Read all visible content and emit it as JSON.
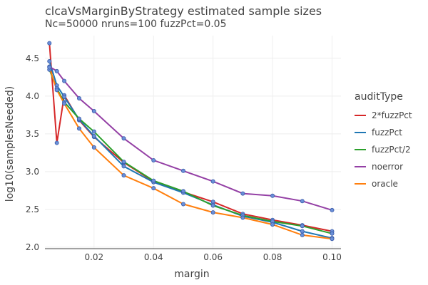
{
  "chart_data": {
    "type": "line",
    "title": "clcaVsMarginByStrategy estimated sample sizes",
    "subtitle": "Nc=50000 nruns=100 fuzzPct=0.05",
    "xlabel": "margin",
    "ylabel": "log10(samplesNeeded)",
    "xlim": [
      0.0035,
      0.103
    ],
    "ylim": [
      1.98,
      4.8
    ],
    "xticks": [
      0.02,
      0.04,
      0.06,
      0.08,
      0.1
    ],
    "xtick_labels": [
      "0.02",
      "0.04",
      "0.06",
      "0.08",
      "0.10"
    ],
    "yticks": [
      2.0,
      2.5,
      3.0,
      3.5,
      4.0,
      4.5
    ],
    "ytick_labels": [
      "2.0",
      "2.5",
      "3.0",
      "3.5",
      "4.0",
      "4.5"
    ],
    "grid": true,
    "legend": {
      "title": "auditType",
      "position": "right"
    },
    "x": [
      0.005,
      0.0075,
      0.01,
      0.015,
      0.02,
      0.03,
      0.04,
      0.05,
      0.06,
      0.07,
      0.08,
      0.09,
      0.1
    ],
    "series": [
      {
        "name": "2*fuzzPct",
        "color": "#d62728",
        "values": [
          4.7,
          3.38,
          4.01,
          3.68,
          3.46,
          3.12,
          2.87,
          2.73,
          2.6,
          2.44,
          2.36,
          2.29,
          2.21
        ]
      },
      {
        "name": "fuzzPct",
        "color": "#1f77b4",
        "values": [
          4.46,
          4.14,
          3.99,
          3.69,
          3.47,
          3.07,
          2.86,
          2.72,
          2.56,
          2.41,
          2.33,
          2.21,
          2.12
        ]
      },
      {
        "name": "fuzzPct/2",
        "color": "#2ca02c",
        "values": [
          4.35,
          4.1,
          3.92,
          3.7,
          3.53,
          3.13,
          2.88,
          2.74,
          2.55,
          2.42,
          2.34,
          2.28,
          2.18
        ]
      },
      {
        "name": "noerror",
        "color": "#9440a5",
        "values": [
          4.39,
          4.33,
          4.2,
          3.97,
          3.8,
          3.44,
          3.15,
          3.01,
          2.87,
          2.71,
          2.68,
          2.61,
          2.49
        ]
      },
      {
        "name": "oracle",
        "color": "#ff7f0e",
        "values": [
          4.38,
          4.08,
          3.9,
          3.57,
          3.32,
          2.95,
          2.78,
          2.57,
          2.46,
          2.39,
          2.3,
          2.16,
          2.11
        ]
      }
    ]
  }
}
